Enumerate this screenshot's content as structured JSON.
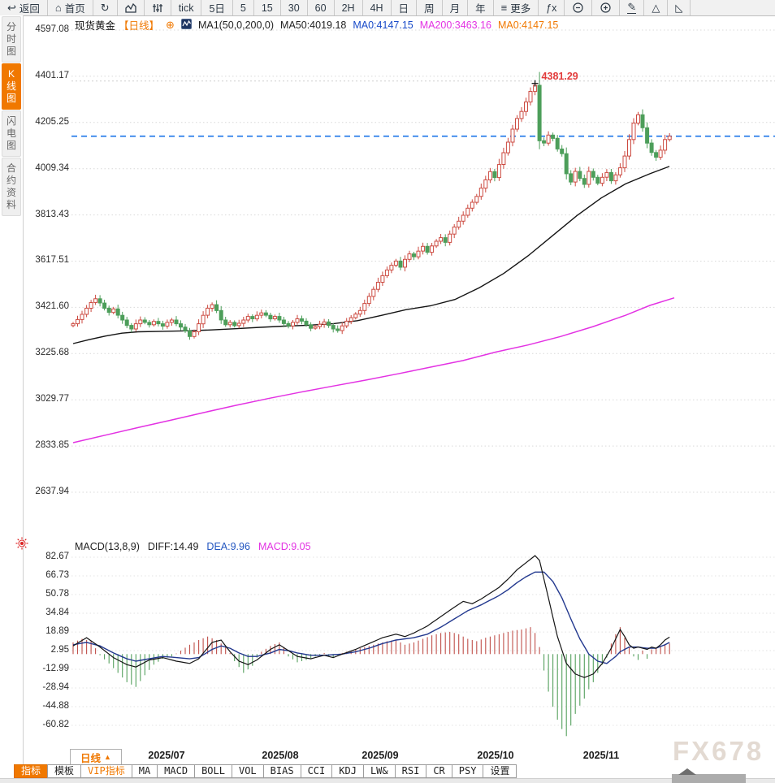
{
  "toolbar": {
    "items": [
      {
        "name": "back",
        "icon": "back-icon",
        "label": "返回"
      },
      {
        "name": "home",
        "icon": "home-icon",
        "label": "首页"
      },
      {
        "name": "refresh",
        "icon": "refresh-icon",
        "label": ""
      },
      {
        "name": "chart-type",
        "icon": "bar-chart-icon",
        "label": ""
      },
      {
        "name": "candle-settings",
        "icon": "sliders-icon",
        "label": ""
      },
      {
        "name": "tick",
        "label": "tick"
      },
      {
        "name": "5d",
        "label": "5日"
      },
      {
        "name": "m5",
        "label": "5"
      },
      {
        "name": "m15",
        "label": "15"
      },
      {
        "name": "m30",
        "label": "30"
      },
      {
        "name": "m60",
        "label": "60"
      },
      {
        "name": "h2",
        "label": "2H"
      },
      {
        "name": "h4",
        "label": "4H"
      },
      {
        "name": "day",
        "label": "日"
      },
      {
        "name": "week",
        "label": "周"
      },
      {
        "name": "month",
        "label": "月"
      },
      {
        "name": "year",
        "label": "年"
      },
      {
        "name": "more",
        "icon": "menu-icon",
        "label": "更多"
      },
      {
        "name": "formula",
        "label": "ƒx"
      },
      {
        "name": "zoom-out",
        "icon": "zoom-out-icon",
        "label": ""
      },
      {
        "name": "zoom-in",
        "icon": "zoom-in-icon",
        "label": ""
      },
      {
        "name": "draw",
        "icon": "pencil-icon",
        "label": ""
      },
      {
        "name": "shape",
        "icon": "triangle-icon",
        "label": ""
      },
      {
        "name": "shape-clipped",
        "icon": "clipped-icon",
        "label": ""
      }
    ]
  },
  "sidebar": {
    "items": [
      {
        "label": "分时图",
        "active": false
      },
      {
        "label": "K线图",
        "active": true
      },
      {
        "label": "闪电图",
        "active": false
      },
      {
        "label": "合约资料",
        "active": false
      }
    ]
  },
  "chart_header": {
    "symbol": "现货黄金",
    "period": "【日线】",
    "ma_settings": "MA1(50,0,200,0)",
    "ma50": "MA50:4019.18",
    "ma0_blue": "MA0:4147.15",
    "ma200": "MA200:3463.16",
    "ma0_orange": "MA0:4147.15"
  },
  "macd_header": {
    "title": "MACD(13,8,9)",
    "diff": "DIFF:14.49",
    "dea": "DEA:9.96",
    "macd": "MACD:9.05"
  },
  "bottom": {
    "period_button": "日线",
    "period_arrow": "▲",
    "tabs": [
      {
        "label": "指标",
        "state": "active"
      },
      {
        "label": "模板",
        "state": ""
      },
      {
        "label": "VIP指标",
        "state": "vip"
      },
      {
        "label": "MA",
        "state": ""
      },
      {
        "label": "MACD",
        "state": ""
      },
      {
        "label": "BOLL",
        "state": ""
      },
      {
        "label": "VOL",
        "state": ""
      },
      {
        "label": "BIAS",
        "state": ""
      },
      {
        "label": "CCI",
        "state": ""
      },
      {
        "label": "KDJ",
        "state": ""
      },
      {
        "label": "LW&",
        "state": ""
      },
      {
        "label": "RSI",
        "state": ""
      },
      {
        "label": "CR",
        "state": ""
      },
      {
        "label": "PSY",
        "state": ""
      },
      {
        "label": "设置",
        "state": ""
      }
    ]
  },
  "watermark": "FX678",
  "colors": {
    "accent_orange": "#f07800",
    "candle_up": "#cc4a40",
    "candle_down": "#4d9e5a",
    "ma50": "#141414",
    "ma200": "#e332e3",
    "dea_line": "#23398f",
    "diff_line": "#141414",
    "price_line": "#1b74e8",
    "annotation_red": "#e23b3b",
    "grid": "#d9d9d9",
    "hist_up": "#c0504a",
    "hist_down": "#55a05e",
    "text_blue": "#1749c8",
    "text_magenta": "#e332e3"
  },
  "chart_data": {
    "type": "candlestick+macd",
    "main": {
      "title": "现货黄金 日线 (spot gold, daily)",
      "y_ticks": [
        4597.08,
        4401.17,
        4205.25,
        4009.34,
        3813.43,
        3617.51,
        3421.6,
        3225.68,
        3029.77,
        2833.85,
        2637.94
      ],
      "x_labels": [
        [
          205,
          "2025/07"
        ],
        [
          345,
          "2025/08"
        ],
        [
          468,
          "2025/09"
        ],
        [
          610,
          "2025/10"
        ],
        [
          740,
          "2025/11"
        ]
      ],
      "current_price": 4147.15,
      "annotation": {
        "value": 4381.29,
        "index": 103
      },
      "closes": [
        3352,
        3370,
        3392,
        3418,
        3442,
        3458,
        3440,
        3418,
        3400,
        3415,
        3388,
        3368,
        3345,
        3330,
        3352,
        3368,
        3358,
        3348,
        3362,
        3352,
        3342,
        3358,
        3368,
        3352,
        3338,
        3322,
        3298,
        3318,
        3352,
        3388,
        3418,
        3433,
        3408,
        3368,
        3348,
        3358,
        3344,
        3354,
        3368,
        3383,
        3373,
        3388,
        3398,
        3388,
        3373,
        3383,
        3368,
        3353,
        3343,
        3358,
        3373,
        3363,
        3348,
        3333,
        3340,
        3350,
        3360,
        3345,
        3330,
        3323,
        3343,
        3363,
        3378,
        3393,
        3408,
        3438,
        3468,
        3498,
        3528,
        3556,
        3580,
        3600,
        3618,
        3592,
        3625,
        3648,
        3636,
        3660,
        3680,
        3655,
        3682,
        3702,
        3717,
        3697,
        3732,
        3762,
        3787,
        3812,
        3842,
        3867,
        3892,
        3927,
        3962,
        3997,
        3972,
        4027,
        4077,
        4122,
        4177,
        4222,
        4252,
        4292,
        4337,
        4363,
        4128,
        4118,
        4152,
        4138,
        4093,
        4073,
        3988,
        3953,
        3998,
        3968,
        3943,
        3998,
        3973,
        3948,
        3973,
        3993,
        3958,
        3983,
        4013,
        4063,
        4133,
        4203,
        4238,
        4183,
        4118,
        4078,
        4058,
        4088,
        4133,
        4147.15
      ],
      "ma50": [
        [
          90,
          3268
        ],
        [
          110,
          3285
        ],
        [
          130,
          3300
        ],
        [
          150,
          3312
        ],
        [
          170,
          3318
        ],
        [
          200,
          3320
        ],
        [
          230,
          3322
        ],
        [
          260,
          3326
        ],
        [
          290,
          3331
        ],
        [
          320,
          3337
        ],
        [
          350,
          3342
        ],
        [
          380,
          3346
        ],
        [
          410,
          3352
        ],
        [
          440,
          3365
        ],
        [
          470,
          3388
        ],
        [
          500,
          3412
        ],
        [
          530,
          3428
        ],
        [
          560,
          3455
        ],
        [
          590,
          3505
        ],
        [
          620,
          3565
        ],
        [
          650,
          3640
        ],
        [
          680,
          3725
        ],
        [
          710,
          3810
        ],
        [
          740,
          3885
        ],
        [
          770,
          3945
        ],
        [
          800,
          3988
        ],
        [
          824,
          4019
        ]
      ],
      "ma200": [
        [
          90,
          2848
        ],
        [
          130,
          2880
        ],
        [
          170,
          2912
        ],
        [
          210,
          2943
        ],
        [
          250,
          2975
        ],
        [
          290,
          3006
        ],
        [
          330,
          3035
        ],
        [
          370,
          3062
        ],
        [
          410,
          3088
        ],
        [
          450,
          3113
        ],
        [
          490,
          3140
        ],
        [
          530,
          3168
        ],
        [
          570,
          3196
        ],
        [
          610,
          3232
        ],
        [
          650,
          3262
        ],
        [
          690,
          3298
        ],
        [
          730,
          3340
        ],
        [
          770,
          3388
        ],
        [
          800,
          3430
        ],
        [
          830,
          3462
        ]
      ]
    },
    "macd": {
      "y_ticks": [
        82.67,
        66.73,
        50.78,
        34.84,
        18.89,
        2.95,
        -12.99,
        -28.94,
        -44.88,
        -60.82
      ],
      "diff_key": [
        [
          0,
          7
        ],
        [
          3,
          14
        ],
        [
          6,
          6
        ],
        [
          9,
          -3
        ],
        [
          12,
          -9
        ],
        [
          14,
          -11
        ],
        [
          17,
          -5
        ],
        [
          20,
          -3
        ],
        [
          23,
          -6
        ],
        [
          26,
          -8
        ],
        [
          28,
          -4
        ],
        [
          31,
          10
        ],
        [
          33,
          12
        ],
        [
          35,
          2
        ],
        [
          37,
          -6
        ],
        [
          39,
          -9
        ],
        [
          41,
          -5
        ],
        [
          44,
          4
        ],
        [
          46,
          8
        ],
        [
          48,
          3
        ],
        [
          50,
          -2
        ],
        [
          53,
          -4
        ],
        [
          56,
          -1
        ],
        [
          58,
          -3
        ],
        [
          60,
          0
        ],
        [
          63,
          4
        ],
        [
          66,
          9
        ],
        [
          69,
          14
        ],
        [
          72,
          17
        ],
        [
          74,
          15
        ],
        [
          76,
          18
        ],
        [
          79,
          24
        ],
        [
          82,
          32
        ],
        [
          85,
          40
        ],
        [
          87,
          45
        ],
        [
          89,
          43
        ],
        [
          91,
          47
        ],
        [
          93,
          52
        ],
        [
          95,
          57
        ],
        [
          97,
          64
        ],
        [
          99,
          72
        ],
        [
          101,
          78
        ],
        [
          103,
          84
        ],
        [
          104,
          80
        ],
        [
          106,
          48
        ],
        [
          108,
          15
        ],
        [
          110,
          -8
        ],
        [
          112,
          -17
        ],
        [
          114,
          -20
        ],
        [
          116,
          -17
        ],
        [
          118,
          -8
        ],
        [
          120,
          5
        ],
        [
          122,
          21
        ],
        [
          123,
          15
        ],
        [
          124,
          8
        ],
        [
          125,
          5
        ],
        [
          126,
          6
        ],
        [
          127,
          5
        ],
        [
          128,
          4
        ],
        [
          129,
          6
        ],
        [
          130,
          5
        ],
        [
          131,
          8
        ],
        [
          132,
          12
        ],
        [
          133,
          14.49
        ]
      ],
      "dea_key": [
        [
          0,
          8
        ],
        [
          3,
          10
        ],
        [
          6,
          7
        ],
        [
          9,
          1
        ],
        [
          12,
          -4
        ],
        [
          14,
          -6
        ],
        [
          17,
          -4
        ],
        [
          20,
          -2
        ],
        [
          23,
          -3
        ],
        [
          26,
          -4
        ],
        [
          28,
          -3
        ],
        [
          31,
          4
        ],
        [
          33,
          7
        ],
        [
          35,
          5
        ],
        [
          37,
          1
        ],
        [
          39,
          -2
        ],
        [
          41,
          -2
        ],
        [
          44,
          1
        ],
        [
          46,
          4
        ],
        [
          48,
          3
        ],
        [
          50,
          1
        ],
        [
          53,
          -1
        ],
        [
          56,
          -1
        ],
        [
          60,
          0
        ],
        [
          63,
          2
        ],
        [
          66,
          5
        ],
        [
          69,
          9
        ],
        [
          72,
          12
        ],
        [
          74,
          13
        ],
        [
          76,
          14
        ],
        [
          79,
          17
        ],
        [
          82,
          23
        ],
        [
          85,
          30
        ],
        [
          88,
          37
        ],
        [
          91,
          42
        ],
        [
          93,
          46
        ],
        [
          95,
          50
        ],
        [
          97,
          55
        ],
        [
          99,
          61
        ],
        [
          101,
          66
        ],
        [
          103,
          70
        ],
        [
          105,
          70
        ],
        [
          107,
          62
        ],
        [
          109,
          48
        ],
        [
          111,
          30
        ],
        [
          113,
          13
        ],
        [
          115,
          0
        ],
        [
          117,
          -6
        ],
        [
          119,
          -8
        ],
        [
          121,
          -2
        ],
        [
          122,
          2
        ],
        [
          124,
          6
        ],
        [
          126,
          6
        ],
        [
          128,
          5
        ],
        [
          130,
          5
        ],
        [
          132,
          8
        ],
        [
          133,
          9.96
        ]
      ],
      "hist_key": [
        [
          0,
          10
        ],
        [
          2,
          13
        ],
        [
          4,
          11
        ],
        [
          6,
          -1
        ],
        [
          8,
          -8
        ],
        [
          10,
          -16
        ],
        [
          12,
          -24
        ],
        [
          14,
          -28
        ],
        [
          16,
          -18
        ],
        [
          18,
          -9
        ],
        [
          20,
          -4
        ],
        [
          22,
          -2
        ],
        [
          24,
          3
        ],
        [
          26,
          8
        ],
        [
          28,
          12
        ],
        [
          30,
          15
        ],
        [
          32,
          12
        ],
        [
          34,
          6
        ],
        [
          35,
          1
        ],
        [
          36,
          -6
        ],
        [
          38,
          -16
        ],
        [
          40,
          -10
        ],
        [
          41,
          -3
        ],
        [
          42,
          2
        ],
        [
          44,
          7
        ],
        [
          46,
          10
        ],
        [
          47,
          6
        ],
        [
          48,
          -2
        ],
        [
          50,
          -7
        ],
        [
          52,
          -5
        ],
        [
          54,
          -2
        ],
        [
          56,
          1
        ],
        [
          57,
          -2
        ],
        [
          58,
          -3
        ],
        [
          60,
          1
        ],
        [
          62,
          3
        ],
        [
          64,
          5
        ],
        [
          66,
          7
        ],
        [
          68,
          9
        ],
        [
          70,
          11
        ],
        [
          72,
          12
        ],
        [
          74,
          8
        ],
        [
          76,
          10
        ],
        [
          78,
          13
        ],
        [
          80,
          16
        ],
        [
          82,
          18
        ],
        [
          84,
          19
        ],
        [
          86,
          17
        ],
        [
          88,
          13
        ],
        [
          90,
          11
        ],
        [
          92,
          14
        ],
        [
          94,
          16
        ],
        [
          96,
          18
        ],
        [
          98,
          20
        ],
        [
          100,
          21
        ],
        [
          102,
          23
        ],
        [
          103,
          18
        ],
        [
          104,
          6
        ],
        [
          105,
          -14
        ],
        [
          106,
          -32
        ],
        [
          107,
          -45
        ],
        [
          108,
          -56
        ],
        [
          109,
          -64
        ],
        [
          110,
          -70
        ],
        [
          111,
          -61
        ],
        [
          112,
          -51
        ],
        [
          113,
          -44
        ],
        [
          114,
          -38
        ],
        [
          115,
          -30
        ],
        [
          116,
          -24
        ],
        [
          117,
          -16
        ],
        [
          118,
          -9
        ],
        [
          119,
          -3
        ],
        [
          120,
          9
        ],
        [
          121,
          17
        ],
        [
          122,
          23
        ],
        [
          123,
          14
        ],
        [
          124,
          6
        ],
        [
          125,
          -2
        ],
        [
          126,
          -5
        ],
        [
          127,
          3
        ],
        [
          128,
          -4
        ],
        [
          129,
          4
        ],
        [
          130,
          5
        ],
        [
          131,
          7
        ],
        [
          132,
          8
        ],
        [
          133,
          9.05
        ]
      ]
    },
    "layout": {
      "x0": 90,
      "pitch": 5.52,
      "plot_left": 88,
      "plot_right": 954,
      "main_top": 37,
      "main_top_price": 4597.08,
      "main_scale": 0.29043,
      "macd_zero_y": 805.3,
      "macd_scale": 1.4425,
      "grid": "dotted-horizontal",
      "legend": "inline-top"
    }
  }
}
